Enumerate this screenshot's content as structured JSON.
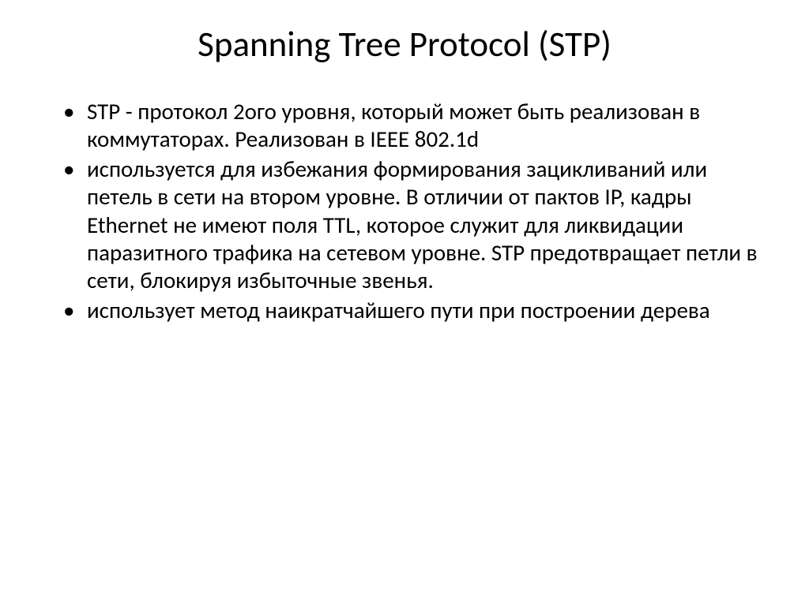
{
  "slide": {
    "title": "Spanning Tree Protocol (STP)",
    "title_fontsize": 45,
    "body_fontsize": 29,
    "background_color": "#ffffff",
    "text_color": "#000000",
    "font_family": "Calibri",
    "bullets": [
      "STP - протокол 2ого уровня, который может быть реализован в коммутаторах. Реализован в IEEE 802.1d",
      "используется для избежания формирования зацикливаний или петель в сети на втором уровне. В отличии от пактов IP, кадры Ethernet не имеют поля TTL, которое служит для ликвидации паразитного трафика на сетевом уровне. STP предотвращает петли в сети, блокируя избыточные звенья.",
      "использует метод наикратчайшего пути при построении дерева"
    ]
  }
}
